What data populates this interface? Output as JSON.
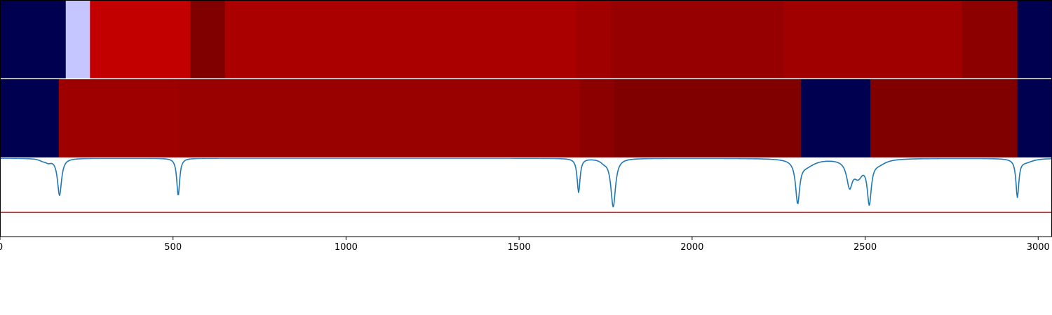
{
  "chart_data": [
    {
      "type": "heatmap",
      "xlim": [
        0,
        3040
      ],
      "colormap": "seismic",
      "segments": [
        {
          "x0": 0,
          "x1": 190,
          "color": "#000050"
        },
        {
          "x0": 190,
          "x1": 260,
          "color": "#c5c5ff"
        },
        {
          "x0": 260,
          "x1": 550,
          "color": "#c20000"
        },
        {
          "x0": 550,
          "x1": 650,
          "color": "#800000"
        },
        {
          "x0": 650,
          "x1": 1665,
          "color": "#aa0000"
        },
        {
          "x0": 1665,
          "x1": 1765,
          "color": "#a00000"
        },
        {
          "x0": 1765,
          "x1": 2265,
          "color": "#960000"
        },
        {
          "x0": 2265,
          "x1": 2780,
          "color": "#a10000"
        },
        {
          "x0": 2780,
          "x1": 2940,
          "color": "#8c0000"
        },
        {
          "x0": 2940,
          "x1": 3040,
          "color": "#000050"
        }
      ]
    },
    {
      "type": "heatmap",
      "xlim": [
        0,
        3040
      ],
      "colormap": "seismic",
      "segments": [
        {
          "x0": 0,
          "x1": 170,
          "color": "#000050"
        },
        {
          "x0": 170,
          "x1": 515,
          "color": "#9e0000"
        },
        {
          "x0": 515,
          "x1": 1675,
          "color": "#990000"
        },
        {
          "x0": 1675,
          "x1": 1775,
          "color": "#8c0000"
        },
        {
          "x0": 1775,
          "x1": 2315,
          "color": "#800000"
        },
        {
          "x0": 2315,
          "x1": 2515,
          "color": "#000050"
        },
        {
          "x0": 2515,
          "x1": 2940,
          "color": "#800000"
        },
        {
          "x0": 2940,
          "x1": 3040,
          "color": "#000050"
        }
      ]
    },
    {
      "type": "line",
      "xlim": [
        0,
        3040
      ],
      "ylim": [
        -0.1,
        1.0
      ],
      "xticks": [
        "0",
        "500",
        "1000",
        "1500",
        "2000",
        "2500",
        "3000"
      ],
      "xtick_values": [
        0,
        500,
        1000,
        1500,
        2000,
        2500,
        3000
      ],
      "series": [
        {
          "color": "#1f77b4",
          "baseline": 1.0,
          "dips": [
            {
              "x": 125,
              "depth": 0.03,
              "width": 14
            },
            {
              "x": 140,
              "depth": 0.04,
              "width": 10
            },
            {
              "x": 172,
              "depth": 0.52,
              "width": 7
            },
            {
              "x": 515,
              "depth": 0.53,
              "width": 5
            },
            {
              "x": 1672,
              "depth": 0.48,
              "width": 5
            },
            {
              "x": 1745,
              "depth": 0.04,
              "width": 12
            },
            {
              "x": 1772,
              "depth": 0.68,
              "width": 8
            },
            {
              "x": 2305,
              "depth": 0.58,
              "width": 7
            },
            {
              "x": 2330,
              "depth": 0.1,
              "width": 30
            },
            {
              "x": 2455,
              "depth": 0.35,
              "width": 10
            },
            {
              "x": 2480,
              "depth": 0.22,
              "width": 16
            },
            {
              "x": 2512,
              "depth": 0.58,
              "width": 7
            },
            {
              "x": 2540,
              "depth": 0.06,
              "width": 25
            },
            {
              "x": 2940,
              "depth": 0.53,
              "width": 5
            },
            {
              "x": 2965,
              "depth": 0.05,
              "width": 25
            }
          ]
        },
        {
          "color": "#e31a1c",
          "constant": 0.24
        }
      ]
    }
  ]
}
